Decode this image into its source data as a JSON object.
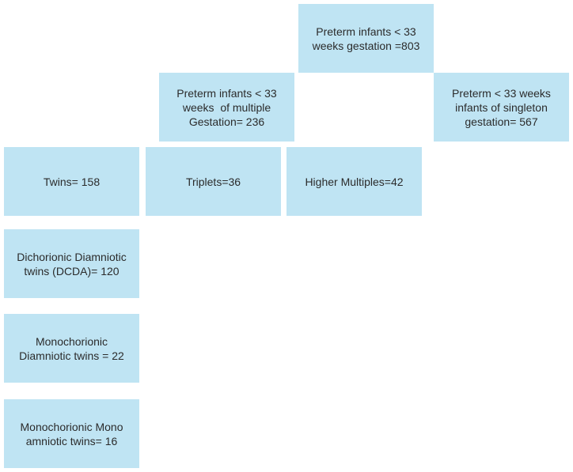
{
  "nodes": [
    {
      "lines": [
        "Preterm infants < 33",
        "weeks gestation =803"
      ]
    },
    {
      "lines": [
        "Preterm infants < 33",
        "weeks  of multiple",
        "Gestation= 236"
      ]
    },
    {
      "lines": [
        "Preterm < 33 weeks",
        "infants of singleton",
        "gestation= 567"
      ]
    },
    {
      "lines": [
        "Twins= 158"
      ]
    },
    {
      "lines": [
        "Triplets=36"
      ]
    },
    {
      "lines": [
        "Higher Multiples=42"
      ]
    },
    {
      "lines": [
        "Dichorionic Diamniotic",
        "twins (DCDA)= 120"
      ]
    },
    {
      "lines": [
        "Monochorionic",
        "Diamniotic twins = 22"
      ]
    },
    {
      "lines": [
        "Monochorionic Mono",
        "amniotic twins= 16"
      ]
    }
  ]
}
